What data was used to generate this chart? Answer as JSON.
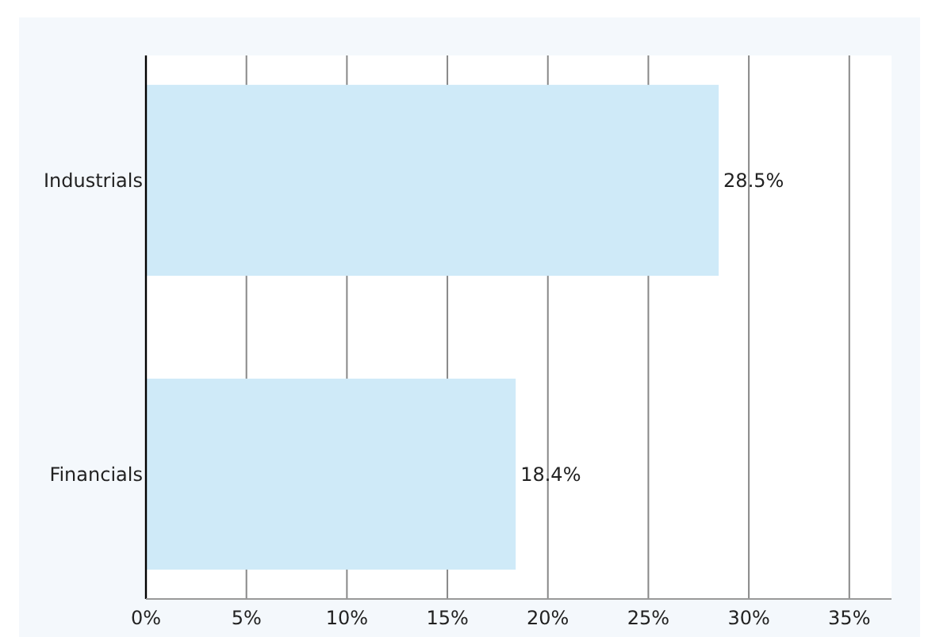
{
  "chart_data": {
    "type": "bar",
    "orientation": "horizontal",
    "categories": [
      "Industrials",
      "Financials"
    ],
    "values": [
      28.5,
      18.4
    ],
    "color": "#cfeaf8",
    "value_labels": [
      "28.5%",
      "18.4%"
    ],
    "xlim": [
      0,
      37.1
    ],
    "xticks": [
      {
        "value": 0,
        "label": "0%"
      },
      {
        "value": 5,
        "label": "5%"
      },
      {
        "value": 10,
        "label": "10%"
      },
      {
        "value": 15,
        "label": "15%"
      },
      {
        "value": 20,
        "label": "20%"
      },
      {
        "value": 25,
        "label": "25%"
      },
      {
        "value": 30,
        "label": "30%"
      },
      {
        "value": 35,
        "label": "35%"
      }
    ],
    "grid": "x"
  }
}
